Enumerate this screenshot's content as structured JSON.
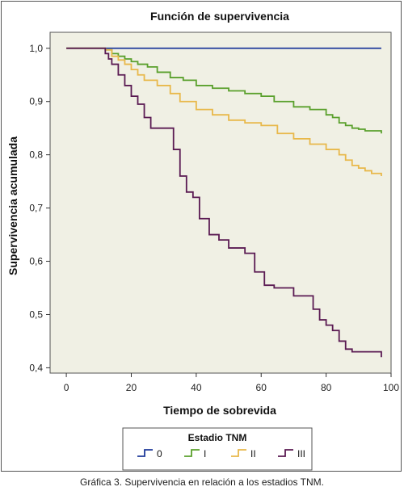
{
  "chart_data": {
    "type": "line",
    "title": "Función de supervivencia",
    "xlabel": "Tiempo de sobrevida",
    "ylabel": "Supervivencia acumulada",
    "xlim": [
      -5,
      100
    ],
    "ylim": [
      0.39,
      1.03
    ],
    "x_ticks": [
      0,
      20,
      40,
      60,
      80,
      100
    ],
    "y_ticks": [
      0.4,
      0.5,
      0.6,
      0.7,
      0.8,
      0.9,
      1.0
    ],
    "x_tick_labels": [
      "0",
      "20",
      "40",
      "60",
      "80",
      "100"
    ],
    "y_tick_labels": [
      "0,4",
      "0,5",
      "0,6",
      "0,7",
      "0,8",
      "0,9",
      "1,0"
    ],
    "grid": false,
    "plot_background": "#f0f0e4",
    "legend": {
      "title": "Estadio TNM",
      "position": "bottom-center"
    },
    "step": true,
    "series": [
      {
        "name": "0",
        "color": "#1f3a9a",
        "x": [
          0,
          97
        ],
        "y": [
          1.0,
          1.0
        ]
      },
      {
        "name": "I",
        "color": "#5aa02c",
        "x": [
          0,
          12,
          14,
          16,
          18,
          20,
          22,
          25,
          28,
          32,
          36,
          40,
          45,
          50,
          55,
          60,
          64,
          70,
          75,
          80,
          82,
          84,
          86,
          88,
          90,
          92,
          97
        ],
        "y": [
          1.0,
          0.997,
          0.99,
          0.985,
          0.98,
          0.975,
          0.97,
          0.965,
          0.955,
          0.945,
          0.94,
          0.93,
          0.925,
          0.92,
          0.915,
          0.91,
          0.9,
          0.89,
          0.885,
          0.875,
          0.87,
          0.86,
          0.855,
          0.85,
          0.848,
          0.845,
          0.84
        ]
      },
      {
        "name": "II",
        "color": "#e8b84a",
        "x": [
          0,
          12,
          14,
          16,
          18,
          20,
          22,
          24,
          28,
          32,
          35,
          40,
          45,
          50,
          55,
          60,
          65,
          70,
          75,
          80,
          84,
          86,
          88,
          90,
          92,
          94,
          97
        ],
        "y": [
          1.0,
          0.997,
          0.985,
          0.978,
          0.97,
          0.96,
          0.95,
          0.94,
          0.93,
          0.915,
          0.9,
          0.885,
          0.875,
          0.865,
          0.86,
          0.855,
          0.84,
          0.83,
          0.82,
          0.81,
          0.8,
          0.79,
          0.78,
          0.775,
          0.77,
          0.765,
          0.76
        ]
      },
      {
        "name": "III",
        "color": "#5a1a52",
        "x": [
          0,
          12,
          13,
          14,
          16,
          18,
          20,
          22,
          24,
          26,
          28,
          33,
          35,
          37,
          39,
          41,
          44,
          47,
          50,
          55,
          58,
          61,
          64,
          70,
          76,
          78,
          80,
          82,
          84,
          86,
          88,
          90,
          92,
          97
        ],
        "y": [
          1.0,
          0.99,
          0.98,
          0.97,
          0.95,
          0.93,
          0.91,
          0.895,
          0.87,
          0.85,
          0.85,
          0.81,
          0.76,
          0.73,
          0.72,
          0.68,
          0.65,
          0.64,
          0.625,
          0.615,
          0.58,
          0.555,
          0.55,
          0.535,
          0.51,
          0.49,
          0.48,
          0.47,
          0.45,
          0.435,
          0.43,
          0.43,
          0.43,
          0.42
        ]
      }
    ]
  },
  "caption": "Gráfica 3. Supervivencia en relación a los estadios TNM."
}
